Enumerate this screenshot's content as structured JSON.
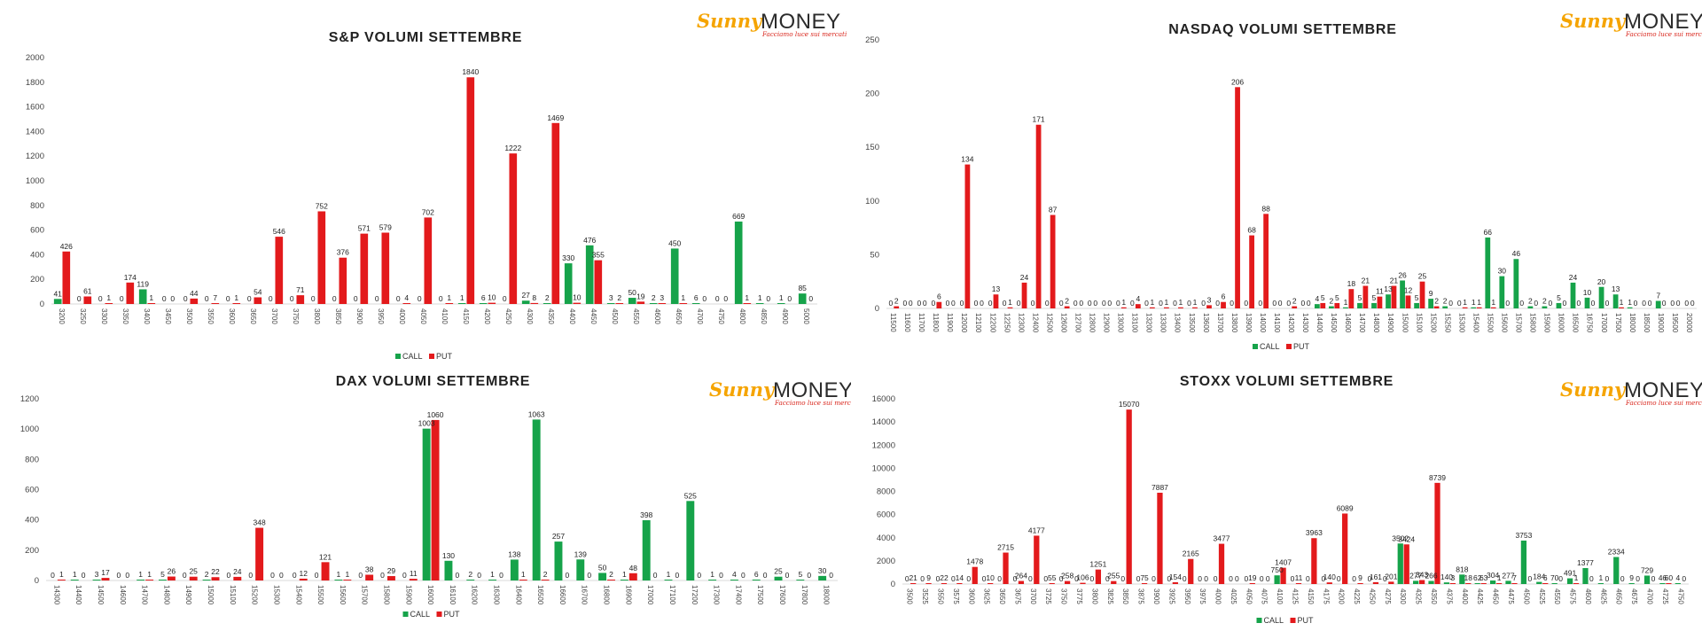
{
  "logo": {
    "sun_text": "Sunny",
    "money_text": "MONEY",
    "tagline": "Facciamo luce sui mercati"
  },
  "colors": {
    "call": "#16a34a",
    "put": "#e31a1c"
  },
  "chart_data": [
    {
      "id": "sp",
      "type": "bar",
      "title": "S&P VOLUMI SETTEMBRE",
      "ylim": [
        0,
        2000
      ],
      "yticks": [
        0,
        200,
        400,
        600,
        800,
        1000,
        1200,
        1400,
        1600,
        1800,
        2000
      ],
      "legend": "bottom",
      "categories": [
        "3200",
        "3250",
        "3300",
        "3350",
        "3400",
        "3450",
        "3500",
        "3550",
        "3600",
        "3650",
        "3700",
        "3750",
        "3800",
        "3850",
        "3900",
        "3950",
        "4000",
        "4050",
        "4100",
        "4150",
        "4200",
        "4250",
        "4300",
        "4350",
        "4400",
        "4450",
        "4500",
        "4550",
        "4600",
        "4650",
        "4700",
        "4750",
        "4800",
        "4850",
        "4900",
        "5000"
      ],
      "series": [
        {
          "name": "CALL",
          "values": [
            41,
            0,
            0,
            0,
            119,
            0,
            0,
            0,
            0,
            0,
            0,
            0,
            0,
            0,
            0,
            0,
            0,
            0,
            0,
            1,
            6,
            0,
            27,
            2,
            330,
            476,
            3,
            50,
            2,
            450,
            6,
            0,
            669,
            1,
            1,
            85
          ]
        },
        {
          "name": "PUT",
          "values": [
            426,
            61,
            1,
            174,
            1,
            0,
            44,
            7,
            1,
            54,
            546,
            71,
            752,
            376,
            571,
            579,
            4,
            702,
            1,
            1840,
            10,
            1222,
            8,
            1469,
            10,
            355,
            2,
            19,
            3,
            1,
            0,
            0,
            1,
            0,
            0,
            0
          ]
        }
      ]
    },
    {
      "id": "nasdaq",
      "type": "bar",
      "title": "NASDAQ VOLUMI SETTEMBRE",
      "ylim": [
        0,
        250
      ],
      "yticks": [
        0,
        50,
        100,
        150,
        200,
        250
      ],
      "legend": "bottom",
      "categories": [
        "11500",
        "11600",
        "11700",
        "11800",
        "11900",
        "12000",
        "12100",
        "12200",
        "12250",
        "12300",
        "12400",
        "12500",
        "12600",
        "12700",
        "12800",
        "12900",
        "13000",
        "13100",
        "13200",
        "13300",
        "13400",
        "13500",
        "13600",
        "13700",
        "13800",
        "13900",
        "14000",
        "14100",
        "14200",
        "14300",
        "14400",
        "14500",
        "14600",
        "14700",
        "14800",
        "14900",
        "15000",
        "15100",
        "15200",
        "15250",
        "15300",
        "15400",
        "15500",
        "15600",
        "15700",
        "15800",
        "15900",
        "16000",
        "16500",
        "16750",
        "17000",
        "17500",
        "18000",
        "18500",
        "19000",
        "19500",
        "20000"
      ],
      "series": [
        {
          "name": "CALL",
          "values": [
            0,
            0,
            0,
            0,
            0,
            0,
            0,
            0,
            0,
            0,
            0,
            0,
            0,
            0,
            0,
            0,
            0,
            0,
            0,
            0,
            0,
            0,
            0,
            0,
            0,
            0,
            0,
            0,
            0,
            0,
            4,
            2,
            1,
            5,
            5,
            13,
            26,
            5,
            9,
            2,
            0,
            1,
            66,
            30,
            46,
            2,
            2,
            5,
            24,
            10,
            20,
            13,
            1,
            0,
            7,
            0,
            0
          ]
        },
        {
          "name": "PUT",
          "values": [
            2,
            0,
            0,
            6,
            0,
            134,
            0,
            13,
            1,
            24,
            171,
            87,
            2,
            0,
            0,
            0,
            1,
            4,
            1,
            1,
            1,
            1,
            3,
            6,
            206,
            68,
            88,
            0,
            2,
            0,
            5,
            5,
            18,
            21,
            11,
            21,
            12,
            25,
            2,
            0,
            1,
            1,
            1,
            0,
            0,
            0,
            0,
            0,
            0,
            0,
            0,
            1,
            0,
            0,
            0,
            0,
            0
          ]
        }
      ]
    },
    {
      "id": "dax",
      "type": "bar",
      "title": "DAX VOLUMI SETTEMBRE",
      "ylim": [
        0,
        1200
      ],
      "yticks": [
        0,
        200,
        400,
        600,
        800,
        1000,
        1200
      ],
      "legend": "bottom",
      "categories": [
        "14300",
        "14400",
        "14500",
        "14600",
        "14700",
        "14800",
        "14900",
        "15000",
        "15100",
        "15200",
        "15300",
        "15400",
        "15500",
        "15600",
        "15700",
        "15800",
        "15900",
        "16000",
        "16100",
        "16200",
        "16300",
        "16400",
        "16500",
        "16600",
        "16700",
        "16800",
        "16900",
        "17000",
        "17100",
        "17200",
        "17300",
        "17400",
        "17500",
        "17600",
        "17800",
        "18000"
      ],
      "series": [
        {
          "name": "CALL",
          "values": [
            0,
            1,
            3,
            0,
            1,
            5,
            0,
            2,
            0,
            0,
            0,
            0,
            0,
            1,
            0,
            0,
            0,
            1003,
            130,
            2,
            1,
            138,
            1063,
            257,
            139,
            50,
            1,
            398,
            1,
            525,
            1,
            4,
            6,
            25,
            5,
            30
          ]
        },
        {
          "name": "PUT",
          "values": [
            1,
            0,
            17,
            0,
            1,
            26,
            25,
            22,
            24,
            348,
            0,
            12,
            121,
            1,
            38,
            29,
            11,
            1060,
            0,
            0,
            0,
            1,
            2,
            0,
            0,
            2,
            48,
            0,
            0,
            0,
            0,
            0,
            0,
            0,
            0,
            0
          ]
        }
      ]
    },
    {
      "id": "stoxx",
      "type": "bar",
      "title": "STOXX VOLUMI SETTEMBRE",
      "ylim": [
        0,
        16000
      ],
      "yticks": [
        0,
        2000,
        4000,
        6000,
        8000,
        10000,
        12000,
        14000,
        16000
      ],
      "legend": "bottom",
      "categories": [
        "3500",
        "3525",
        "3550",
        "3575",
        "3600",
        "3625",
        "3650",
        "3675",
        "3700",
        "3725",
        "3750",
        "3775",
        "3800",
        "3825",
        "3850",
        "3875",
        "3900",
        "3925",
        "3950",
        "3975",
        "4000",
        "4025",
        "4050",
        "4075",
        "4100",
        "4125",
        "4150",
        "4175",
        "4200",
        "4225",
        "4250",
        "4275",
        "4300",
        "4325",
        "4350",
        "4375",
        "4400",
        "4425",
        "4450",
        "4475",
        "4500",
        "4525",
        "4550",
        "4575",
        "4600",
        "4625",
        "4650",
        "4675",
        "4700",
        "4725",
        "4750"
      ],
      "series": [
        {
          "name": "CALL",
          "values": [
            0,
            0,
            0,
            0,
            0,
            0,
            0,
            0,
            0,
            0,
            0,
            0,
            0,
            0,
            0,
            0,
            0,
            0,
            0,
            0,
            0,
            0,
            0,
            0,
            750,
            0,
            0,
            0,
            0,
            0,
            0,
            0,
            3502,
            277,
            266,
            140,
            818,
            62,
            304,
            277,
            3753,
            184,
            70,
            491,
            1377,
            1,
            2334,
            9,
            729,
            46,
            4
          ]
        },
        {
          "name": "PUT",
          "values": [
            21,
            9,
            22,
            14,
            1478,
            10,
            2715,
            264,
            4177,
            55,
            258,
            106,
            1251,
            255,
            15070,
            75,
            7887,
            154,
            2165,
            0,
            3477,
            0,
            19,
            0,
            1407,
            11,
            3963,
            140,
            6089,
            9,
            161,
            201,
            3424,
            343,
            8739,
            3,
            18,
            63,
            1,
            7,
            0,
            6,
            0,
            1,
            0,
            0,
            0,
            0,
            0,
            60,
            0
          ]
        }
      ]
    }
  ]
}
